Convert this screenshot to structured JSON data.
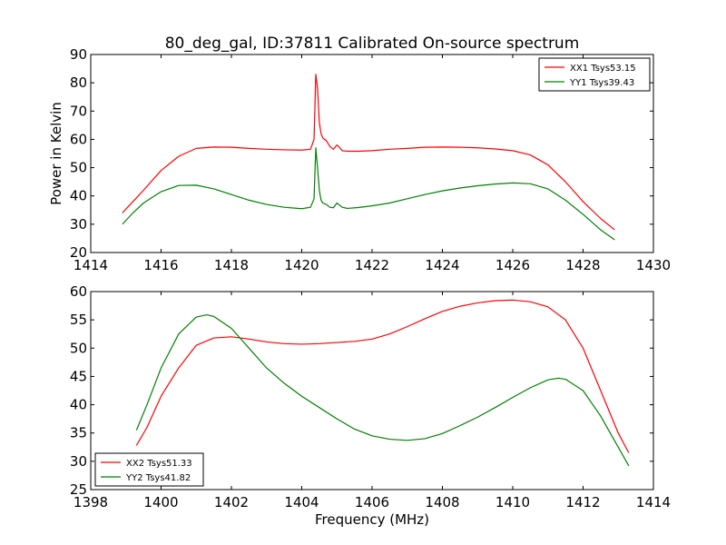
{
  "title": "80_deg_gal, ID:37811 Calibrated On-source spectrum",
  "chart_data": [
    {
      "type": "line",
      "title": "80_deg_gal, ID:37811 Calibrated On-source spectrum",
      "xlabel": "",
      "ylabel": "Power in Kelvin",
      "xlim": [
        1414,
        1430
      ],
      "ylim": [
        20,
        90
      ],
      "xticks": [
        1414,
        1416,
        1418,
        1420,
        1422,
        1424,
        1426,
        1428,
        1430
      ],
      "yticks": [
        20,
        30,
        40,
        50,
        60,
        70,
        80,
        90
      ],
      "grid": false,
      "legend_position": "top-right",
      "series": [
        {
          "name": "XX1 Tsys53.15",
          "color": "#ff0000",
          "x": [
            1414.9,
            1415.2,
            1415.5,
            1416.0,
            1416.5,
            1417.0,
            1417.5,
            1418.0,
            1418.5,
            1419.0,
            1419.5,
            1420.0,
            1420.25,
            1420.35,
            1420.4,
            1420.45,
            1420.5,
            1420.55,
            1420.6,
            1420.7,
            1420.8,
            1420.9,
            1421.0,
            1421.05,
            1421.15,
            1421.3,
            1421.6,
            1422.0,
            1422.5,
            1423.0,
            1423.5,
            1424.0,
            1424.5,
            1425.0,
            1425.5,
            1426.0,
            1426.5,
            1427.0,
            1427.5,
            1428.0,
            1428.5,
            1428.9
          ],
          "y": [
            34,
            38,
            42,
            49,
            54,
            56.8,
            57.3,
            57.2,
            56.8,
            56.5,
            56.3,
            56.2,
            56.5,
            60,
            83,
            78,
            66,
            62,
            60.5,
            59.5,
            57.5,
            56.5,
            58,
            57.5,
            56,
            55.8,
            55.8,
            56,
            56.5,
            56.8,
            57.2,
            57.3,
            57.2,
            57,
            56.6,
            56,
            54.5,
            51,
            45,
            38,
            32,
            28
          ]
        },
        {
          "name": "YY1 Tsys39.43",
          "color": "#008000",
          "x": [
            1414.9,
            1415.2,
            1415.5,
            1416.0,
            1416.5,
            1417.0,
            1417.5,
            1418.0,
            1418.5,
            1419.0,
            1419.5,
            1420.0,
            1420.25,
            1420.35,
            1420.4,
            1420.45,
            1420.5,
            1420.55,
            1420.6,
            1420.7,
            1420.8,
            1420.9,
            1421.0,
            1421.05,
            1421.15,
            1421.3,
            1421.6,
            1422.0,
            1422.5,
            1423.0,
            1423.5,
            1424.0,
            1424.5,
            1425.0,
            1425.5,
            1426.0,
            1426.5,
            1427.0,
            1427.5,
            1428.0,
            1428.5,
            1428.9
          ],
          "y": [
            30,
            34,
            37.5,
            41.5,
            43.7,
            43.8,
            42.5,
            40.5,
            38.5,
            37,
            36,
            35.5,
            36,
            39,
            57,
            50,
            42,
            38.5,
            37.5,
            37,
            36,
            35.8,
            37.5,
            37,
            36,
            35.6,
            35.9,
            36.5,
            37.5,
            39,
            40.5,
            41.8,
            42.8,
            43.6,
            44.2,
            44.6,
            44.3,
            42.5,
            38.5,
            33.5,
            28,
            24.5
          ]
        }
      ]
    },
    {
      "type": "line",
      "title": "",
      "xlabel": "Frequency (MHz)",
      "ylabel": "",
      "xlim": [
        1398,
        1414
      ],
      "ylim": [
        25,
        60
      ],
      "xticks": [
        1398,
        1400,
        1402,
        1404,
        1406,
        1408,
        1410,
        1412,
        1414
      ],
      "yticks": [
        25,
        30,
        35,
        40,
        45,
        50,
        55,
        60
      ],
      "grid": false,
      "legend_position": "bottom-left",
      "series": [
        {
          "name": "XX2 Tsys51.33",
          "color": "#ff0000",
          "x": [
            1399.3,
            1399.6,
            1400.0,
            1400.5,
            1401.0,
            1401.5,
            1402.0,
            1402.5,
            1403.0,
            1403.5,
            1404.0,
            1404.5,
            1405.0,
            1405.5,
            1406.0,
            1406.5,
            1407.0,
            1407.5,
            1408.0,
            1408.5,
            1409.0,
            1409.5,
            1410.0,
            1410.5,
            1411.0,
            1411.5,
            1412.0,
            1412.5,
            1413.0,
            1413.3
          ],
          "y": [
            32.8,
            36,
            41.5,
            46.5,
            50.5,
            51.8,
            52,
            51.6,
            51.1,
            50.8,
            50.7,
            50.8,
            51,
            51.2,
            51.6,
            52.5,
            53.8,
            55.2,
            56.5,
            57.4,
            58,
            58.4,
            58.5,
            58.2,
            57.3,
            55,
            50,
            42.5,
            35,
            31.5
          ]
        },
        {
          "name": "YY2 Tsys41.82",
          "color": "#008000",
          "x": [
            1399.3,
            1399.6,
            1400.0,
            1400.5,
            1401.0,
            1401.3,
            1401.5,
            1402.0,
            1402.5,
            1403.0,
            1403.5,
            1404.0,
            1404.5,
            1405.0,
            1405.5,
            1406.0,
            1406.5,
            1407.0,
            1407.5,
            1408.0,
            1408.5,
            1409.0,
            1409.5,
            1410.0,
            1410.5,
            1411.0,
            1411.3,
            1411.5,
            1412.0,
            1412.5,
            1413.0,
            1413.3
          ],
          "y": [
            35.5,
            40,
            46.5,
            52.5,
            55.5,
            55.9,
            55.6,
            53.5,
            50,
            46.5,
            43.8,
            41.5,
            39.5,
            37.5,
            35.7,
            34.5,
            33.9,
            33.7,
            34,
            34.9,
            36.3,
            37.8,
            39.5,
            41.3,
            43,
            44.4,
            44.7,
            44.5,
            42.5,
            38,
            32.5,
            29.2
          ]
        }
      ]
    }
  ]
}
